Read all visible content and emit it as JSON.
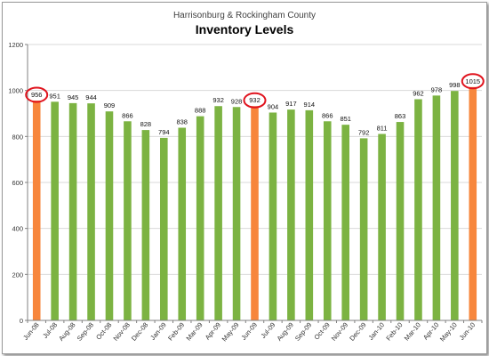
{
  "chart_data": {
    "type": "bar",
    "subtitle": "Harrisonburg & Rockingham County",
    "title": "Inventory Levels",
    "xlabel": "",
    "ylabel": "",
    "ylim": [
      0,
      1200
    ],
    "yticks": [
      0,
      200,
      400,
      600,
      800,
      1000,
      1200
    ],
    "grid": true,
    "legend": "none",
    "categories": [
      "Jun-08",
      "Jul-08",
      "Aug-08",
      "Sep-08",
      "Oct-08",
      "Nov-08",
      "Dec-08",
      "Jan-09",
      "Feb-09",
      "Mar-09",
      "Apr-09",
      "May-09",
      "Jun-09",
      "Jul-09",
      "Aug-09",
      "Sep-09",
      "Oct-09",
      "Nov-09",
      "Dec-09",
      "Jan-10",
      "Feb-10",
      "Mar-10",
      "Apr-10",
      "May-10",
      "Jun-10"
    ],
    "values": [
      956,
      951,
      945,
      944,
      909,
      866,
      828,
      794,
      838,
      888,
      932,
      928,
      932,
      904,
      917,
      914,
      866,
      851,
      792,
      811,
      863,
      962,
      978,
      998,
      1015
    ],
    "labels": [
      "956",
      "951",
      "945",
      "944",
      "909",
      "866",
      "828",
      "794",
      "838",
      "888",
      "932",
      "928",
      "932",
      "904",
      "917",
      "914",
      "866",
      "851",
      "792",
      "811",
      "863",
      "962",
      "978",
      "998",
      "1015"
    ],
    "colors": {
      "default": "#7cb342",
      "highlight": "#f7863c",
      "circle": "#e0141e",
      "grid": "#d9d9d9"
    },
    "highlighted_categories": [
      "Jun-08",
      "Jun-09",
      "Jun-10"
    ]
  }
}
